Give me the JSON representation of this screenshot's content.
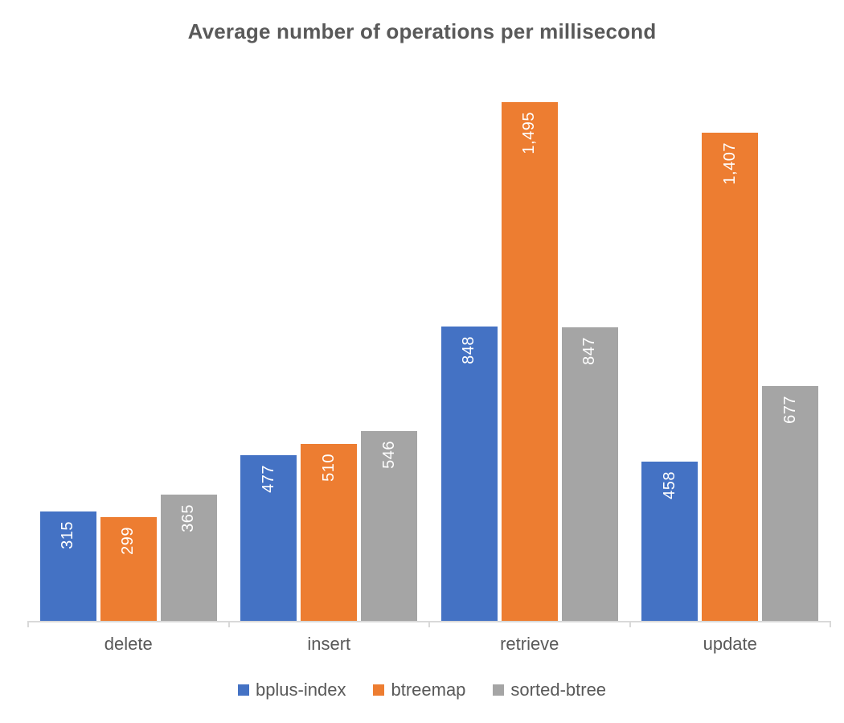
{
  "chart_data": {
    "type": "bar",
    "title": "Average number of operations per millisecond",
    "categories": [
      "delete",
      "insert",
      "retrieve",
      "update"
    ],
    "series": [
      {
        "name": "bplus-index",
        "color": "#4472C4",
        "values": [
          315,
          477,
          848,
          458
        ],
        "labels": [
          "315",
          "477",
          "848",
          "458"
        ]
      },
      {
        "name": "btreemap",
        "color": "#ED7D31",
        "values": [
          299,
          510,
          1495,
          1407
        ],
        "labels": [
          "299",
          "510",
          "1,495",
          "1,407"
        ]
      },
      {
        "name": "sorted-btree",
        "color": "#A5A5A5",
        "values": [
          365,
          546,
          847,
          677
        ],
        "labels": [
          "365",
          "546",
          "847",
          "677"
        ]
      }
    ],
    "xlabel": "",
    "ylabel": "",
    "ylim": [
      0,
      1495
    ],
    "grid": false,
    "y_axis_visible": false,
    "legend_position": "bottom",
    "value_label_orientation": "rotated-90-bottom-to-top",
    "value_label_color": "#FFFFFF",
    "axis_color": "#D9D9D9",
    "text_color": "#595959",
    "background_color": "#FFFFFF"
  }
}
